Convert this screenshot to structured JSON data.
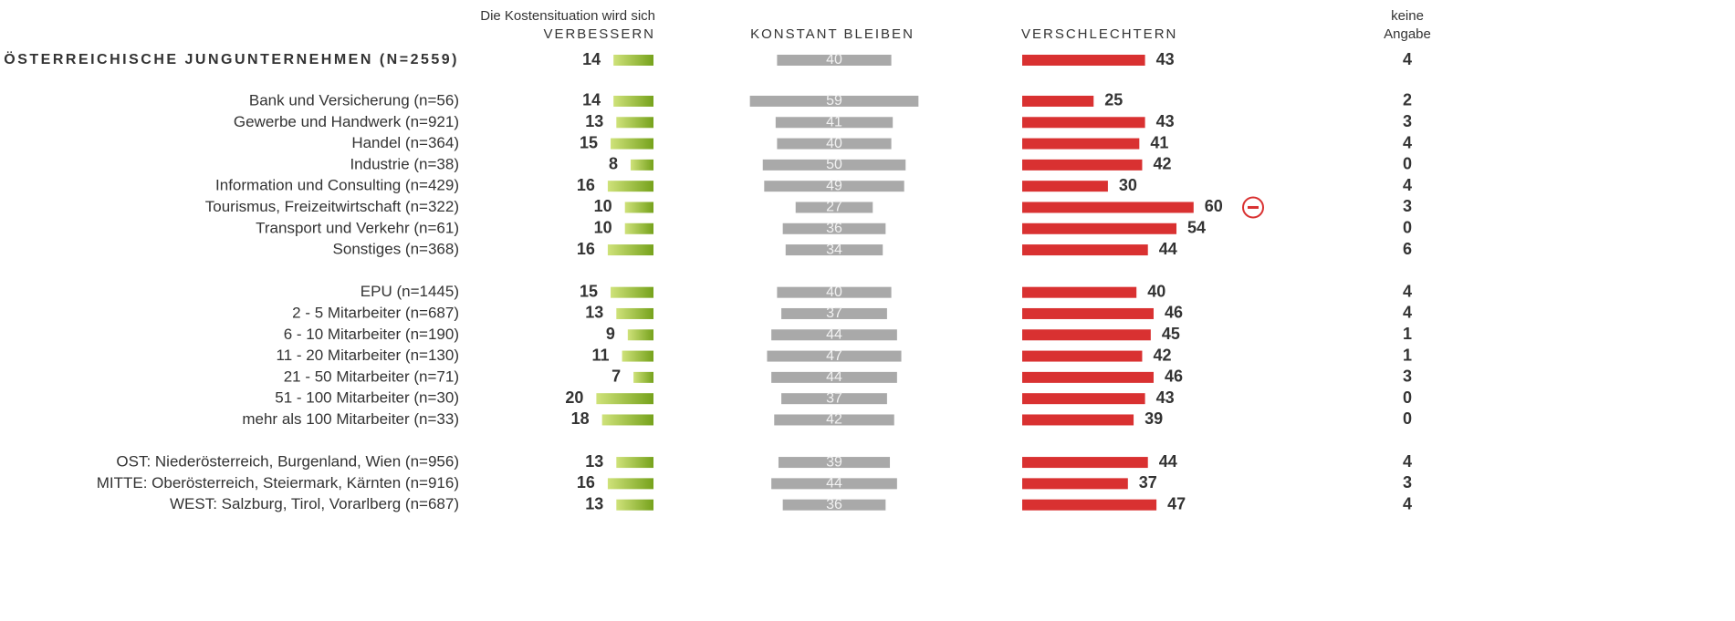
{
  "chart_data": {
    "type": "bar",
    "subtitle": "Die Kostensituation wird sich",
    "categories": [
      "ÖSTERREICHISCHE JUNGUNTERNEHMEN (N=2559)",
      "Bank und Versicherung (n=56)",
      "Gewerbe und Handwerk (n=921)",
      "Handel (n=364)",
      "Industrie (n=38)",
      "Information und Consulting (n=429)",
      "Tourismus, Freizeitwirtschaft (n=322)",
      "Transport und Verkehr (n=61)",
      "Sonstiges (n=368)",
      "EPU (n=1445)",
      "2 - 5 Mitarbeiter (n=687)",
      "6 - 10 Mitarbeiter (n=190)",
      "11 - 20 Mitarbeiter (n=130)",
      "21 - 50 Mitarbeiter (n=71)",
      "51 - 100 Mitarbeiter (n=30)",
      "mehr als 100 Mitarbeiter (n=33)",
      "OST: Niederösterreich, Burgenland, Wien (n=956)",
      "MITTE: Oberösterreich, Steiermark, Kärnten (n=916)",
      "WEST: Salzburg, Tirol, Vorarlberg (n=687)"
    ],
    "series": [
      {
        "name": "VERBESSERN",
        "color": "#8fb52c",
        "values": [
          14,
          14,
          13,
          15,
          8,
          16,
          10,
          10,
          16,
          15,
          13,
          9,
          11,
          7,
          20,
          18,
          13,
          16,
          13
        ]
      },
      {
        "name": "KONSTANT BLEIBEN",
        "color": "#a9a9a9",
        "values": [
          40,
          59,
          41,
          40,
          50,
          49,
          27,
          36,
          34,
          40,
          37,
          44,
          47,
          44,
          37,
          42,
          39,
          44,
          36
        ]
      },
      {
        "name": "VERSCHLECHTERN",
        "color": "#d93131",
        "values": [
          43,
          25,
          43,
          41,
          42,
          30,
          60,
          54,
          44,
          40,
          46,
          45,
          42,
          46,
          43,
          39,
          44,
          37,
          47
        ]
      },
      {
        "name": "keine Angabe",
        "values": [
          4,
          2,
          3,
          4,
          0,
          4,
          3,
          0,
          6,
          4,
          4,
          1,
          1,
          3,
          0,
          0,
          4,
          3,
          4
        ]
      }
    ]
  }
}
